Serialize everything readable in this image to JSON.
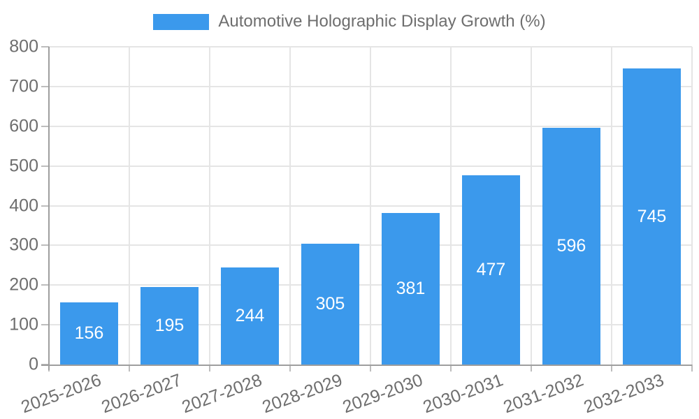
{
  "chart_data": {
    "type": "bar",
    "title": "",
    "legend": "Automotive Holographic Display Growth (%)",
    "legend_position": "top",
    "categories": [
      "2025-2026",
      "2026-2027",
      "2027-2028",
      "2028-2029",
      "2029-2030",
      "2030-2031",
      "2031-2032",
      "2032-2033"
    ],
    "values": [
      156,
      195,
      244,
      305,
      381,
      477,
      596,
      745
    ],
    "xlabel": "",
    "ylabel": "",
    "ylim": [
      0,
      800
    ],
    "ytick_step": 100,
    "grid": true,
    "xtick_rotation_deg": -20,
    "colors": {
      "bar": "#3b99ec",
      "value_label": "#ffffff",
      "text": "#6e6e6e",
      "grid": "#e5e5e5",
      "axis": "#9e9e9e",
      "tick": "#bdbdbd"
    }
  }
}
